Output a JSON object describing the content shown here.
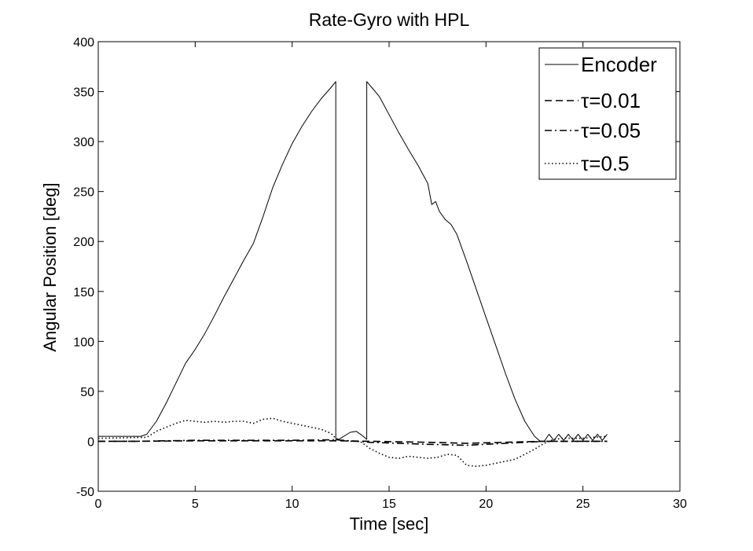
{
  "chart_data": {
    "type": "line",
    "title": "Rate-Gyro with HPL",
    "xlabel": "Time [sec]",
    "ylabel": "Angular Position [deg]",
    "xlim": [
      0,
      30
    ],
    "ylim": [
      -50,
      400
    ],
    "xticks": [
      0,
      5,
      10,
      15,
      20,
      25,
      30
    ],
    "yticks": [
      -50,
      0,
      50,
      100,
      150,
      200,
      250,
      300,
      350,
      400
    ],
    "grid": false,
    "legend_position": "top-right",
    "series": [
      {
        "name": "Encoder",
        "style": "solid",
        "points": [
          [
            0,
            5
          ],
          [
            2.2,
            5
          ],
          [
            2.5,
            7
          ],
          [
            3,
            20
          ],
          [
            3.5,
            38
          ],
          [
            4,
            58
          ],
          [
            4.5,
            78
          ],
          [
            5,
            92
          ],
          [
            5.5,
            108
          ],
          [
            6,
            126
          ],
          [
            6.5,
            145
          ],
          [
            7,
            163
          ],
          [
            7.5,
            181
          ],
          [
            8,
            198
          ],
          [
            8.5,
            225
          ],
          [
            9,
            254
          ],
          [
            9.5,
            277
          ],
          [
            10,
            298
          ],
          [
            10.5,
            315
          ],
          [
            11,
            330
          ],
          [
            11.5,
            343
          ],
          [
            12,
            354
          ],
          [
            12.25,
            360
          ],
          [
            12.25,
            1
          ],
          [
            12.5,
            3
          ],
          [
            13,
            9
          ],
          [
            13.3,
            10
          ],
          [
            13.6,
            6
          ],
          [
            13.85,
            2
          ],
          [
            13.85,
            360
          ],
          [
            14.2,
            352
          ],
          [
            14.5,
            345
          ],
          [
            15,
            327
          ],
          [
            15.5,
            309
          ],
          [
            16,
            292
          ],
          [
            16.5,
            276
          ],
          [
            17,
            258
          ],
          [
            17.2,
            237
          ],
          [
            17.4,
            240
          ],
          [
            17.6,
            230
          ],
          [
            17.9,
            222
          ],
          [
            18.2,
            217
          ],
          [
            18.5,
            207
          ],
          [
            19,
            180
          ],
          [
            19.5,
            152
          ],
          [
            20,
            124
          ],
          [
            20.5,
            96
          ],
          [
            21,
            68
          ],
          [
            21.5,
            42
          ],
          [
            22,
            20
          ],
          [
            22.5,
            5
          ],
          [
            22.8,
            0
          ],
          [
            23,
            0
          ],
          [
            23.25,
            7
          ],
          [
            23.5,
            1
          ],
          [
            23.75,
            7
          ],
          [
            24,
            1
          ],
          [
            24.25,
            7
          ],
          [
            24.5,
            1
          ],
          [
            24.75,
            7
          ],
          [
            25,
            1
          ],
          [
            25.25,
            7
          ],
          [
            25.5,
            1
          ],
          [
            25.75,
            7
          ],
          [
            26,
            1
          ],
          [
            26.25,
            7
          ]
        ]
      },
      {
        "name": "τ=0.01",
        "style": "dashed",
        "points": [
          [
            0,
            0
          ],
          [
            2,
            0
          ],
          [
            5,
            0.5
          ],
          [
            10,
            0.5
          ],
          [
            12.25,
            0.5
          ],
          [
            14,
            0
          ],
          [
            17,
            -1
          ],
          [
            19,
            -2
          ],
          [
            21,
            -1
          ],
          [
            23,
            0
          ],
          [
            26.25,
            0
          ]
        ]
      },
      {
        "name": "τ=0.05",
        "style": "dashdot",
        "points": [
          [
            0,
            0
          ],
          [
            2,
            0
          ],
          [
            5,
            1
          ],
          [
            10,
            1
          ],
          [
            12.25,
            1.5
          ],
          [
            14,
            -1
          ],
          [
            17,
            -3
          ],
          [
            19,
            -4
          ],
          [
            21,
            -2
          ],
          [
            23,
            0
          ],
          [
            26.25,
            0
          ]
        ]
      },
      {
        "name": "τ=0.5",
        "style": "dotted",
        "points": [
          [
            0,
            3
          ],
          [
            2.5,
            4
          ],
          [
            3,
            10
          ],
          [
            3.5,
            14
          ],
          [
            4,
            18
          ],
          [
            4.5,
            21
          ],
          [
            5,
            20
          ],
          [
            5.5,
            19
          ],
          [
            6,
            20
          ],
          [
            6.5,
            19
          ],
          [
            7,
            20
          ],
          [
            7.5,
            20
          ],
          [
            8,
            18
          ],
          [
            8.5,
            22
          ],
          [
            9,
            23
          ],
          [
            9.5,
            20
          ],
          [
            10,
            18
          ],
          [
            10.5,
            16
          ],
          [
            11,
            14
          ],
          [
            11.5,
            12
          ],
          [
            12,
            8
          ],
          [
            12.25,
            3
          ],
          [
            12.5,
            1
          ],
          [
            13,
            0
          ],
          [
            13.5,
            0
          ],
          [
            14,
            -7
          ],
          [
            14.5,
            -12
          ],
          [
            15,
            -16
          ],
          [
            15.5,
            -17
          ],
          [
            16,
            -15
          ],
          [
            16.5,
            -16
          ],
          [
            17,
            -17
          ],
          [
            17.5,
            -16
          ],
          [
            18,
            -13
          ],
          [
            18.5,
            -14
          ],
          [
            19,
            -24
          ],
          [
            19.5,
            -25
          ],
          [
            20,
            -24
          ],
          [
            20.5,
            -22
          ],
          [
            21,
            -20
          ],
          [
            21.5,
            -18
          ],
          [
            22,
            -13
          ],
          [
            22.5,
            -8
          ],
          [
            23,
            -2
          ],
          [
            23.5,
            2
          ],
          [
            24,
            3
          ],
          [
            24.5,
            3
          ],
          [
            25,
            3
          ],
          [
            25.5,
            4
          ],
          [
            26.25,
            5
          ]
        ]
      }
    ]
  }
}
